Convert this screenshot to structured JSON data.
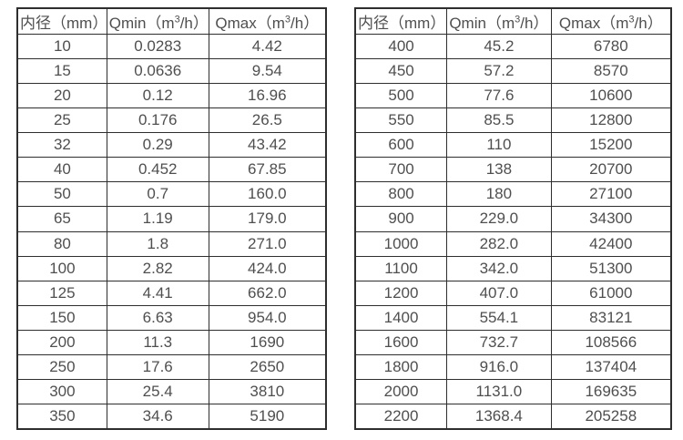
{
  "page": {
    "background_color": "#ffffff",
    "border_color": "#2e2e2e",
    "text_color": "#4f4f4f"
  },
  "left_table": {
    "headers": [
      {
        "text": "内径（mm）"
      },
      {
        "pre": "Qmin（m",
        "sup": "3",
        "post": "/h）"
      },
      {
        "pre": "Qmax（m",
        "sup": "3",
        "post": "/h）"
      }
    ],
    "rows": [
      [
        "10",
        "0.0283",
        "4.42"
      ],
      [
        "15",
        "0.0636",
        "9.54"
      ],
      [
        "20",
        "0.12",
        "16.96"
      ],
      [
        "25",
        "0.176",
        "26.5"
      ],
      [
        "32",
        "0.29",
        "43.42"
      ],
      [
        "40",
        "0.452",
        "67.85"
      ],
      [
        "50",
        "0.7",
        "160.0"
      ],
      [
        "65",
        "1.19",
        "179.0"
      ],
      [
        "80",
        "1.8",
        "271.0"
      ],
      [
        "100",
        "2.82",
        "424.0"
      ],
      [
        "125",
        "4.41",
        "662.0"
      ],
      [
        "150",
        "6.63",
        "954.0"
      ],
      [
        "200",
        "11.3",
        "1690"
      ],
      [
        "250",
        "17.6",
        "2650"
      ],
      [
        "300",
        "25.4",
        "3810"
      ],
      [
        "350",
        "34.6",
        "5190"
      ]
    ]
  },
  "right_table": {
    "headers": [
      {
        "text": "内径（mm）"
      },
      {
        "pre": "Qmin（m",
        "sup": "3",
        "post": "/h）"
      },
      {
        "pre": "Qmax（m",
        "sup": "3",
        "post": "/h）"
      }
    ],
    "rows": [
      [
        "400",
        "45.2",
        "6780"
      ],
      [
        "450",
        "57.2",
        "8570"
      ],
      [
        "500",
        "77.6",
        "10600"
      ],
      [
        "550",
        "85.5",
        "12800"
      ],
      [
        "600",
        "110",
        "15200"
      ],
      [
        "700",
        "138",
        "20700"
      ],
      [
        "800",
        "180",
        "27100"
      ],
      [
        "900",
        "229.0",
        "34300"
      ],
      [
        "1000",
        "282.0",
        "42400"
      ],
      [
        "1100",
        "342.0",
        "51300"
      ],
      [
        "1200",
        "407.0",
        "61000"
      ],
      [
        "1400",
        "554.1",
        "83121"
      ],
      [
        "1600",
        "732.7",
        "108566"
      ],
      [
        "1800",
        "916.0",
        "137404"
      ],
      [
        "2000",
        "1131.0",
        "169635"
      ],
      [
        "2200",
        "1368.4",
        "205258"
      ]
    ]
  }
}
